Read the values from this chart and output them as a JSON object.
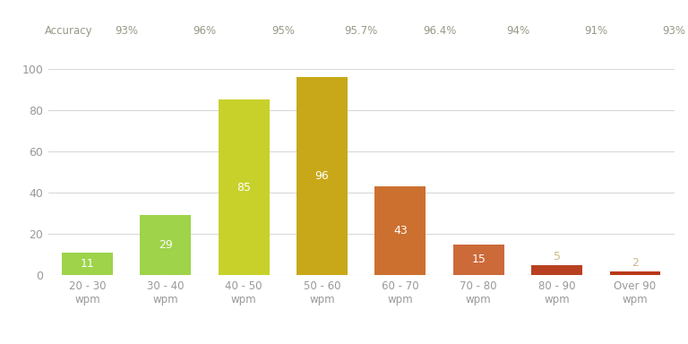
{
  "categories": [
    "20 - 30\nwpm",
    "30 - 40\nwpm",
    "40 - 50\nwpm",
    "50 - 60\nwpm",
    "60 - 70\nwpm",
    "70 - 80\nwpm",
    "80 - 90\nwpm",
    "Over 90\nwpm"
  ],
  "values": [
    11,
    29,
    85,
    96,
    43,
    15,
    5,
    2
  ],
  "accuracy": [
    "93%",
    "96%",
    "95%",
    "95.7%",
    "96.4%",
    "94%",
    "91%",
    "93%"
  ],
  "bar_colors": [
    "#9ED34A",
    "#9ED34A",
    "#C8D12A",
    "#C8A818",
    "#CC7030",
    "#CC6A3A",
    "#B84020",
    "#B83A18"
  ],
  "ylim": [
    0,
    100
  ],
  "yticks": [
    0,
    20,
    40,
    60,
    80,
    100
  ],
  "accuracy_label": "Accuracy",
  "background_color": "#ffffff",
  "grid_color": "#d8d8d8",
  "tick_color": "#999999",
  "label_color_white": "#ffffff",
  "label_color_light": "#ccbb88",
  "accuracy_color": "#999988",
  "bar_width": 0.65
}
